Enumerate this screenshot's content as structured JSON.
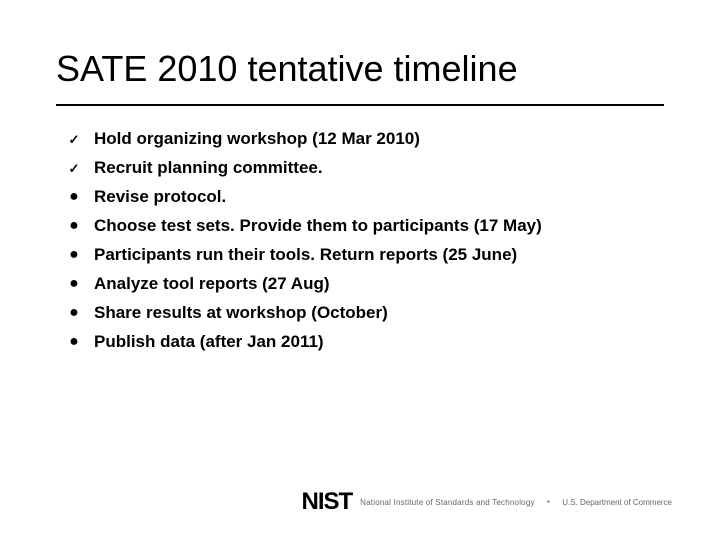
{
  "title": "SATE 2010 tentative timeline",
  "title_fontsize": 36,
  "title_color": "#000000",
  "divider_color": "#000000",
  "bullets": [
    {
      "marker": "check",
      "text": "Hold organizing workshop (12 Mar 2010)"
    },
    {
      "marker": "check",
      "text": "Recruit planning committee."
    },
    {
      "marker": "dot",
      "text": "Revise protocol."
    },
    {
      "marker": "dot",
      "text": "Choose test sets. Provide them to participants (17 May)"
    },
    {
      "marker": "dot",
      "text": "Participants run their tools. Return reports (25 June)"
    },
    {
      "marker": "dot",
      "text": "Analyze tool reports (27 Aug)"
    },
    {
      "marker": "dot",
      "text": "Share results at workshop (October)"
    },
    {
      "marker": "dot",
      "text": "Publish data (after Jan 2011)"
    }
  ],
  "bullet_fontsize": 17,
  "bullet_fontweight": 700,
  "bullet_color": "#000000",
  "markers": {
    "check": "✓",
    "dot": "●"
  },
  "footer": {
    "logo_text": "NIST",
    "logo_subtitle": "National Institute of Standards and Technology",
    "separator": "•",
    "department": "U.S. Department of Commerce"
  },
  "background_color": "#ffffff",
  "slide_width": 720,
  "slide_height": 540
}
